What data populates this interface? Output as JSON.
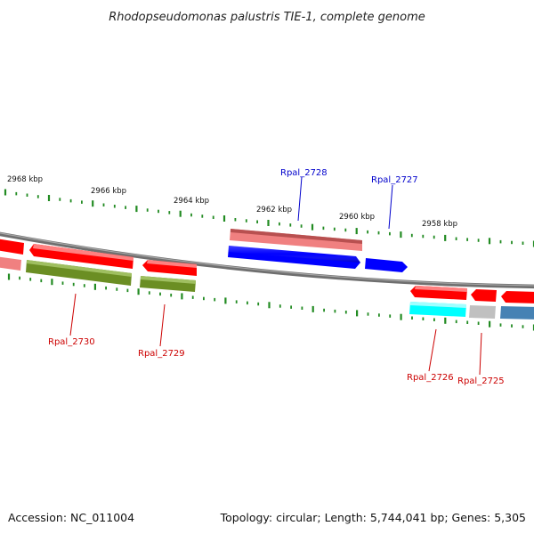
{
  "title": "Rhodopseudomonas palustris TIE-1, complete genome",
  "footer": {
    "accession": "Accession: NC_011004",
    "topology": "Topology: circular; Length: 5,744,041 bp; Genes: 5,305"
  },
  "colors": {
    "backbone": "#808080",
    "tick": "#228b22",
    "forward_label": "#0000cc",
    "reverse_label": "#cc0000"
  },
  "scale_labels": [
    {
      "label": "2968 kbp",
      "kbp": 2968
    },
    {
      "label": "2966 kbp",
      "kbp": 2966
    },
    {
      "label": "2964 kbp",
      "kbp": 2964
    },
    {
      "label": "2962 kbp",
      "kbp": 2962
    },
    {
      "label": "2960 kbp",
      "kbp": 2960
    },
    {
      "label": "2958 kbp",
      "kbp": 2958
    }
  ],
  "gene_labels": [
    {
      "name": "Rpal_2728",
      "strand": "forward"
    },
    {
      "name": "Rpal_2727",
      "strand": "forward"
    },
    {
      "name": "Rpal_2730",
      "strand": "reverse"
    },
    {
      "name": "Rpal_2729",
      "strand": "reverse"
    },
    {
      "name": "Rpal_2726",
      "strand": "reverse"
    },
    {
      "name": "Rpal_2725",
      "strand": "reverse"
    }
  ],
  "genes": [
    {
      "id": "g_left_edge",
      "strand": "reverse",
      "color": "#ff0000",
      "sub_color": "#f08080"
    },
    {
      "id": "Rpal_2730",
      "strand": "reverse",
      "color": "#ff0000",
      "sub_color": "#6b8e23"
    },
    {
      "id": "Rpal_2729",
      "strand": "reverse",
      "color": "#ff0000",
      "sub_color": "#6b8e23"
    },
    {
      "id": "Rpal_2728",
      "strand": "forward",
      "color": "#0000ff",
      "sub_color": "#f08080"
    },
    {
      "id": "Rpal_2727",
      "strand": "forward",
      "color": "#0000ff",
      "sub_color": ""
    },
    {
      "id": "Rpal_2726",
      "strand": "reverse",
      "color": "#ff0000",
      "sub_color": "#00ffff"
    },
    {
      "id": "Rpal_2725",
      "strand": "reverse",
      "color": "#ff0000",
      "sub_color": "#c0c0c0"
    },
    {
      "id": "g_right_edge",
      "strand": "reverse",
      "color": "#ff0000",
      "sub_color": "#4682b4"
    }
  ]
}
